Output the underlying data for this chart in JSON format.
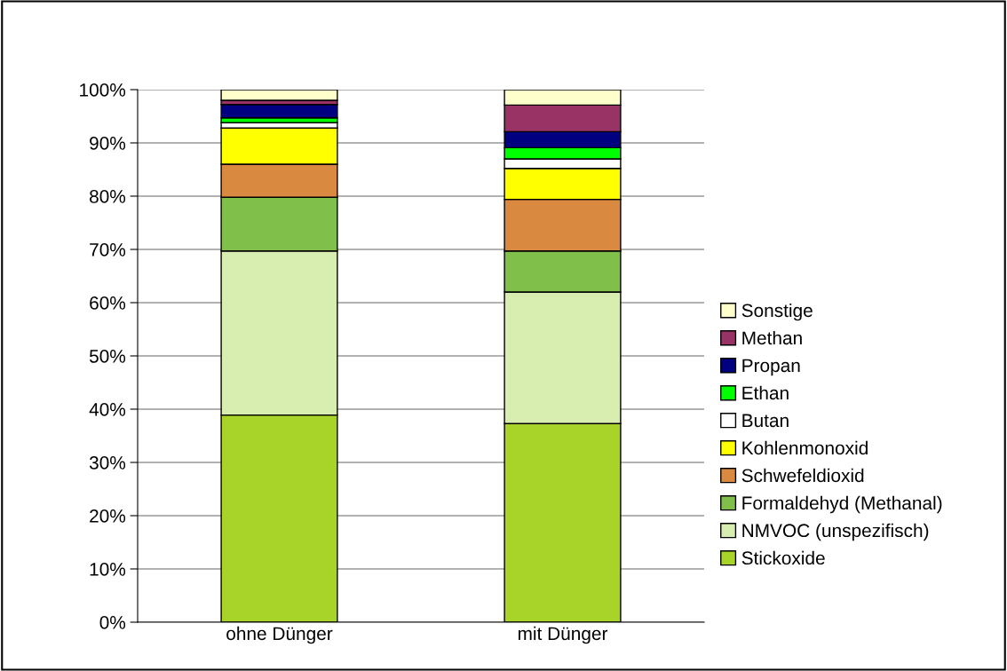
{
  "chart_data": {
    "type": "bar",
    "stacked": true,
    "categories": [
      "ohne Dünger",
      "mit Dünger"
    ],
    "series": [
      {
        "name": "Stickoxide",
        "color": "#a8d42a",
        "values": [
          38.9,
          37.3
        ]
      },
      {
        "name": "NMVOC (unspezifisch)",
        "color": "#d8eeb0",
        "values": [
          30.8,
          24.7
        ]
      },
      {
        "name": "Formaldehyd (Methanal)",
        "color": "#7fbf4a",
        "values": [
          10.1,
          7.7
        ]
      },
      {
        "name": "Schwefeldioxid",
        "color": "#d98a40",
        "values": [
          6.2,
          9.7
        ]
      },
      {
        "name": "Kohlenmonoxid",
        "color": "#ffff00",
        "values": [
          6.8,
          5.8
        ]
      },
      {
        "name": "Butan",
        "color": "#ffffff",
        "values": [
          1.0,
          1.8
        ]
      },
      {
        "name": "Ethan",
        "color": "#00ff00",
        "values": [
          0.9,
          2.1
        ]
      },
      {
        "name": "Propan",
        "color": "#000080",
        "values": [
          2.5,
          3.0
        ]
      },
      {
        "name": "Methan",
        "color": "#993366",
        "values": [
          0.8,
          5.0
        ]
      },
      {
        "name": "Sonstige",
        "color": "#ffffcc",
        "values": [
          2.0,
          2.9
        ]
      }
    ],
    "ylim": [
      0,
      100
    ],
    "yticks": [
      {
        "value": 0,
        "label": "0%"
      },
      {
        "value": 10,
        "label": "10%"
      },
      {
        "value": 20,
        "label": "20%"
      },
      {
        "value": 30,
        "label": "30%"
      },
      {
        "value": 40,
        "label": "40%"
      },
      {
        "value": 50,
        "label": "50%"
      },
      {
        "value": 60,
        "label": "60%"
      },
      {
        "value": 70,
        "label": "70%"
      },
      {
        "value": 80,
        "label": "80%"
      },
      {
        "value": 90,
        "label": "90%"
      },
      {
        "value": 100,
        "label": "100%"
      }
    ],
    "grid": "y",
    "legend": "right"
  }
}
